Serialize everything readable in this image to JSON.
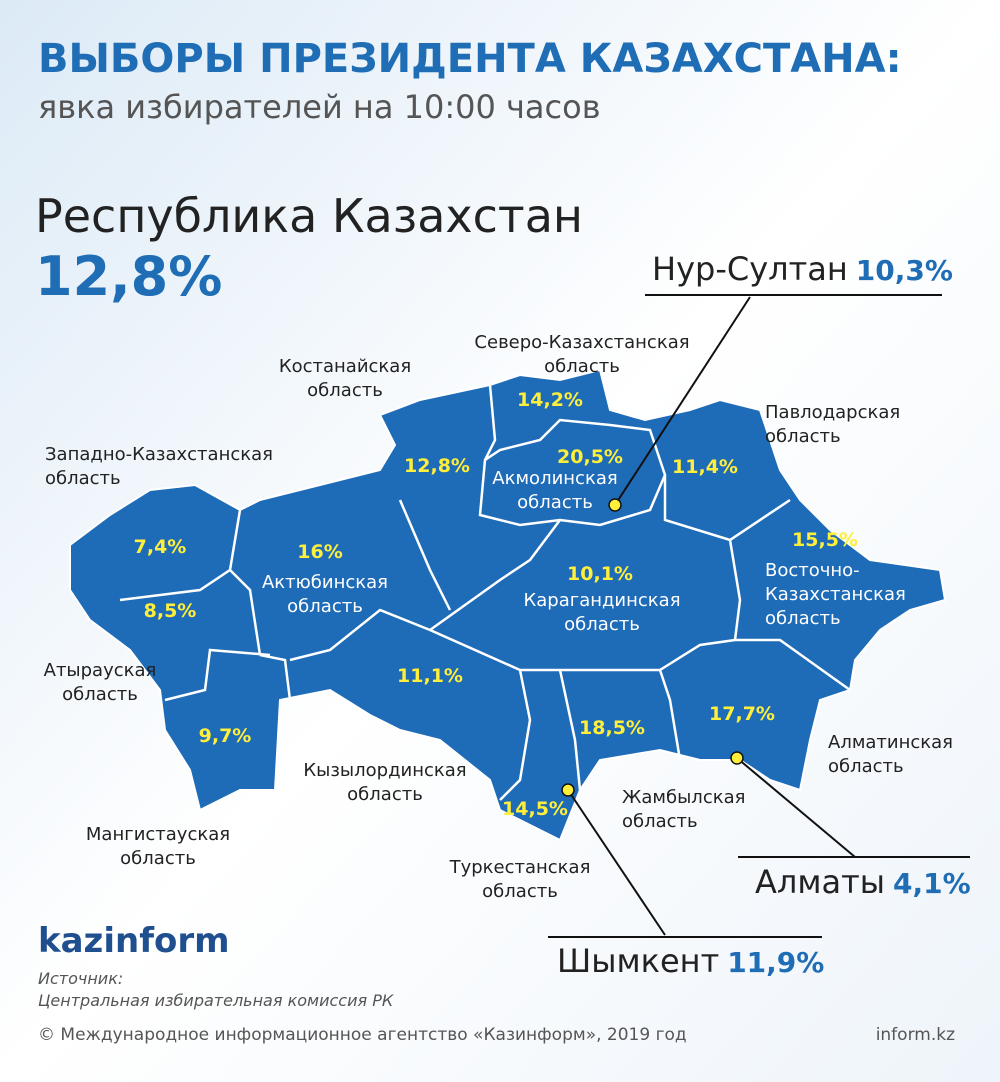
{
  "header": {
    "title": "ВЫБОРЫ ПРЕЗИДЕНТА КАЗАХСТАНА:",
    "subtitle": "явка избирателей на 10:00 часов"
  },
  "national": {
    "name": "Республика Казахстан",
    "turnout": "12,8%"
  },
  "regions": [
    {
      "name_lines": [
        "Костанайская",
        "область"
      ],
      "turnout": "12,8%"
    },
    {
      "name_lines": [
        "Северо-Казахстанская",
        "область"
      ],
      "turnout": "14,2%"
    },
    {
      "name_lines": [
        "Акмолинская",
        "область"
      ],
      "turnout": "20,5%"
    },
    {
      "name_lines": [
        "Павлодарская",
        "область"
      ],
      "turnout": "11,4%"
    },
    {
      "name_lines": [
        "Западно-Казахстанская",
        "область"
      ],
      "turnout": "7,4%"
    },
    {
      "name_lines": [
        "Актюбинская",
        "область"
      ],
      "turnout": "16%"
    },
    {
      "name_lines": [
        "Атырауская",
        "область"
      ],
      "turnout": "8,5%"
    },
    {
      "name_lines": [
        "Мангистауская",
        "область"
      ],
      "turnout": "9,7%"
    },
    {
      "name_lines": [
        "Кызылординская",
        "область"
      ],
      "turnout": "11,1%"
    },
    {
      "name_lines": [
        "Карагандинская",
        "область"
      ],
      "turnout": "10,1%"
    },
    {
      "name_lines": [
        "Восточно-",
        "Казахстанская",
        "область"
      ],
      "turnout": "15,5%"
    },
    {
      "name_lines": [
        "Алматинская",
        "область"
      ],
      "turnout": "17,7%"
    },
    {
      "name_lines": [
        "Жамбылская",
        "область"
      ],
      "turnout": "18,5%"
    },
    {
      "name_lines": [
        "Туркестанская",
        "область"
      ],
      "turnout": "14,5%"
    }
  ],
  "cities": [
    {
      "name": "Нур-Султан",
      "turnout": "10,3%"
    },
    {
      "name": "Алматы",
      "turnout": "4,1%"
    },
    {
      "name": "Шымкент",
      "turnout": "11,9%"
    }
  ],
  "footer": {
    "brand": "kazinform",
    "source_label": "Источник:",
    "source": "Центральная избирательная комиссия РК",
    "copyright": "© Международное информационное агентство «Казинформ», 2019 год",
    "site": "inform.kz"
  }
}
